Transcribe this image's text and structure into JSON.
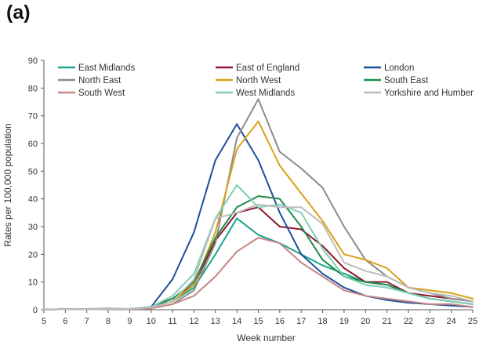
{
  "panel_label": "(a)",
  "chart_data": {
    "type": "line",
    "xlabel": "Week number",
    "ylabel": "Rates per 100,000 population",
    "x": [
      5,
      6,
      7,
      8,
      9,
      10,
      11,
      12,
      13,
      14,
      15,
      16,
      17,
      18,
      19,
      20,
      21,
      22,
      23,
      24,
      25
    ],
    "xlim": [
      5,
      25
    ],
    "ylim": [
      0,
      90
    ],
    "yticks": [
      0,
      10,
      20,
      30,
      40,
      50,
      60,
      70,
      80,
      90
    ],
    "grid": false,
    "legend_position": "top",
    "series": [
      {
        "name": "East Midlands",
        "color": "#1aa58c",
        "values": [
          0,
          0.2,
          0.2,
          0.3,
          0.2,
          0.8,
          3,
          8,
          20,
          33,
          27,
          24,
          20,
          16,
          13,
          10,
          9,
          6,
          4,
          3,
          2
        ]
      },
      {
        "name": "East of England",
        "color": "#8b1a2e",
        "values": [
          0,
          0.2,
          0.2,
          0.3,
          0.3,
          1,
          4,
          9,
          25,
          35,
          37,
          30,
          29,
          23,
          15,
          10,
          10,
          6,
          5,
          4,
          3
        ]
      },
      {
        "name": "London",
        "color": "#1c4f9c",
        "values": [
          0,
          0.3,
          0.3,
          0.4,
          0.3,
          1,
          11,
          28,
          54,
          67,
          54,
          35,
          20,
          13,
          8,
          5,
          3.5,
          2.5,
          2,
          1.5,
          1
        ]
      },
      {
        "name": "North East",
        "color": "#8c8c8c",
        "values": [
          0,
          0.2,
          0.2,
          0.3,
          0.2,
          0.5,
          2,
          7,
          24,
          62,
          76,
          57,
          51,
          44,
          30,
          18,
          12,
          8,
          6,
          4,
          3
        ]
      },
      {
        "name": "North West",
        "color": "#d9a116",
        "values": [
          0,
          0.2,
          0.2,
          0.3,
          0.3,
          0.8,
          3,
          9,
          28,
          58,
          68,
          52,
          42,
          32,
          20,
          18,
          15,
          8,
          7,
          6,
          4
        ]
      },
      {
        "name": "South East",
        "color": "#1f8a4c",
        "values": [
          0,
          0.2,
          0.2,
          0.3,
          0.3,
          0.8,
          4,
          10,
          26,
          37,
          41,
          40,
          30,
          18,
          12,
          10,
          9,
          6,
          4,
          3,
          2
        ]
      },
      {
        "name": "South West",
        "color": "#c78585",
        "values": [
          0,
          0.2,
          0.2,
          0.3,
          0.2,
          0.5,
          2,
          5,
          12,
          21,
          26,
          24,
          17,
          12,
          7,
          5,
          4,
          3,
          2,
          2,
          1
        ]
      },
      {
        "name": "West Midlands",
        "color": "#7fcfb5",
        "values": [
          0,
          0.2,
          0.2,
          0.3,
          0.3,
          1,
          5,
          13,
          33,
          45,
          37,
          38,
          35,
          22,
          12,
          9,
          8,
          6,
          4,
          3,
          2
        ]
      },
      {
        "name": "Yorkshire and Humber",
        "color": "#bcbcbc",
        "values": [
          0,
          0.2,
          0.2,
          0.3,
          0.3,
          0.8,
          3,
          11,
          33,
          35,
          38,
          37,
          37,
          31,
          17,
          14,
          12,
          8,
          6,
          5,
          3
        ]
      }
    ]
  }
}
